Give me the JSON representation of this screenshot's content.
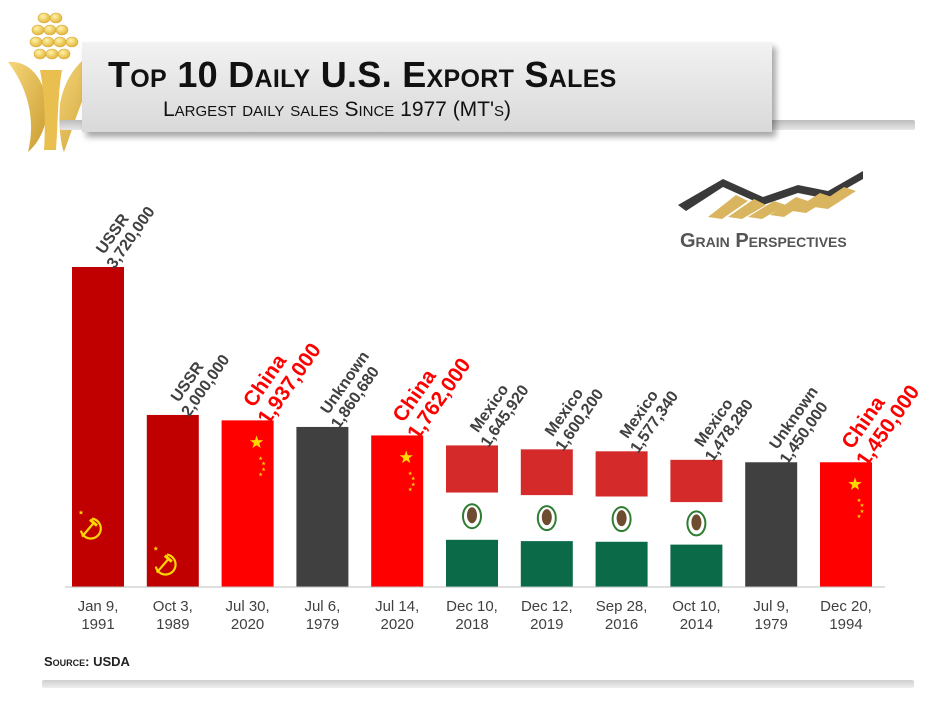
{
  "header": {
    "title": "Top 10 Daily U.S. Export Sales",
    "subtitle": "Largest daily sales Since 1977 (MT's)"
  },
  "brand": {
    "name": "Grain Perspectives",
    "logo_icon": "grain-chart-logo-icon",
    "corn_icon": "corn-cob-icon"
  },
  "source": "Source: USDA",
  "colors": {
    "ussr_red": "#c00000",
    "china_red": "#ff0000",
    "unknown_gray": "#404040",
    "mexico_red": "#d42a2a",
    "mexico_white": "#ffffff",
    "mexico_green": "#0b6b48",
    "label_dark": "#404040",
    "label_china": "#ff0000",
    "star_yellow": "#ffd700"
  },
  "chart_data": {
    "type": "bar",
    "categories": [
      "Jan 9, 1991",
      "Oct 3, 1989",
      "Jul 30, 2020",
      "Jul 6, 1979",
      "Jul 14, 2020",
      "Dec 10, 2018",
      "Dec 12, 2019",
      "Sep 28, 2016",
      "Oct 10, 2014",
      "Jul 9, 1979",
      "Dec 20, 1994"
    ],
    "values": [
      3720000,
      2000000,
      1937000,
      1860680,
      1762000,
      1645920,
      1600200,
      1577340,
      1478280,
      1450000,
      1450000
    ],
    "buyers": [
      "USSR",
      "USSR",
      "China",
      "Unknown",
      "China",
      "Mexico",
      "Mexico",
      "Mexico",
      "Mexico",
      "Unknown",
      "China"
    ],
    "value_labels": [
      "3,720,000",
      "2,000,000",
      "1,937,000",
      "1,860,680",
      "1,762,000",
      "1,645,920",
      "1,600,200",
      "1,577,340",
      "1,478,280",
      "1,450,000",
      "1,450,000"
    ],
    "ylim": [
      0,
      3720000
    ],
    "title": "Top 10 Daily U.S. Export Sales",
    "subtitle": "Largest daily sales Since 1977 (MT's)",
    "xlabel": "",
    "ylabel": "",
    "grid": false,
    "legend": "none"
  }
}
